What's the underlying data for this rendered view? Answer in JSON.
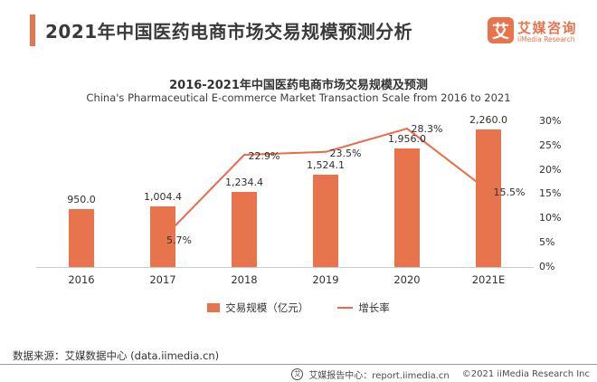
{
  "header": {
    "title": "2021年中国医药电商市场交易规模预测分析",
    "logo_glyph": "艾",
    "logo_cn": "艾媒咨询",
    "logo_en": "iiMedia Research"
  },
  "chart_data": {
    "type": "bar",
    "title": "2016-2021年中国医药电商市场交易规模及预测",
    "subtitle": "China's Pharmaceutical E-commerce Market Transaction Scale from 2016 to 2021",
    "categories": [
      "2016",
      "2017",
      "2018",
      "2019",
      "2020",
      "2021E"
    ],
    "series": [
      {
        "name": "交易规模（亿元）",
        "type": "bar",
        "color": "#E8744E",
        "values": [
          950.0,
          1004.4,
          1234.4,
          1524.1,
          1956.0,
          2260.0
        ],
        "value_labels": [
          "950.0",
          "1,004.4",
          "1,234.4",
          "1,524.1",
          "1,956.0",
          "2,260.0"
        ]
      },
      {
        "name": "增长率",
        "type": "line",
        "color": "#EA6B44",
        "values": [
          null,
          5.7,
          22.9,
          23.5,
          28.3,
          15.5
        ],
        "value_labels": [
          null,
          "5.7%",
          "22.9%",
          "23.5%",
          "28.3%",
          "15.5%"
        ]
      }
    ],
    "right_axis": {
      "ticks": [
        "0%",
        "5%",
        "10%",
        "15%",
        "20%",
        "25%",
        "30%"
      ],
      "min": 0,
      "max": 30
    },
    "left_axis_visible": false,
    "grid": false,
    "legend_position": "bottom"
  },
  "source_text": "数据来源：艾媒数据中心 (data.iimedia.cn)",
  "footer": {
    "report_center": "艾媒报告中心：report.iimedia.cn",
    "copyright": "©2021 iiMedia Research Inc"
  },
  "colors": {
    "accent": "#E8744E",
    "line": "#EA6B44",
    "axis": "#cccccc",
    "text": "#333333"
  }
}
